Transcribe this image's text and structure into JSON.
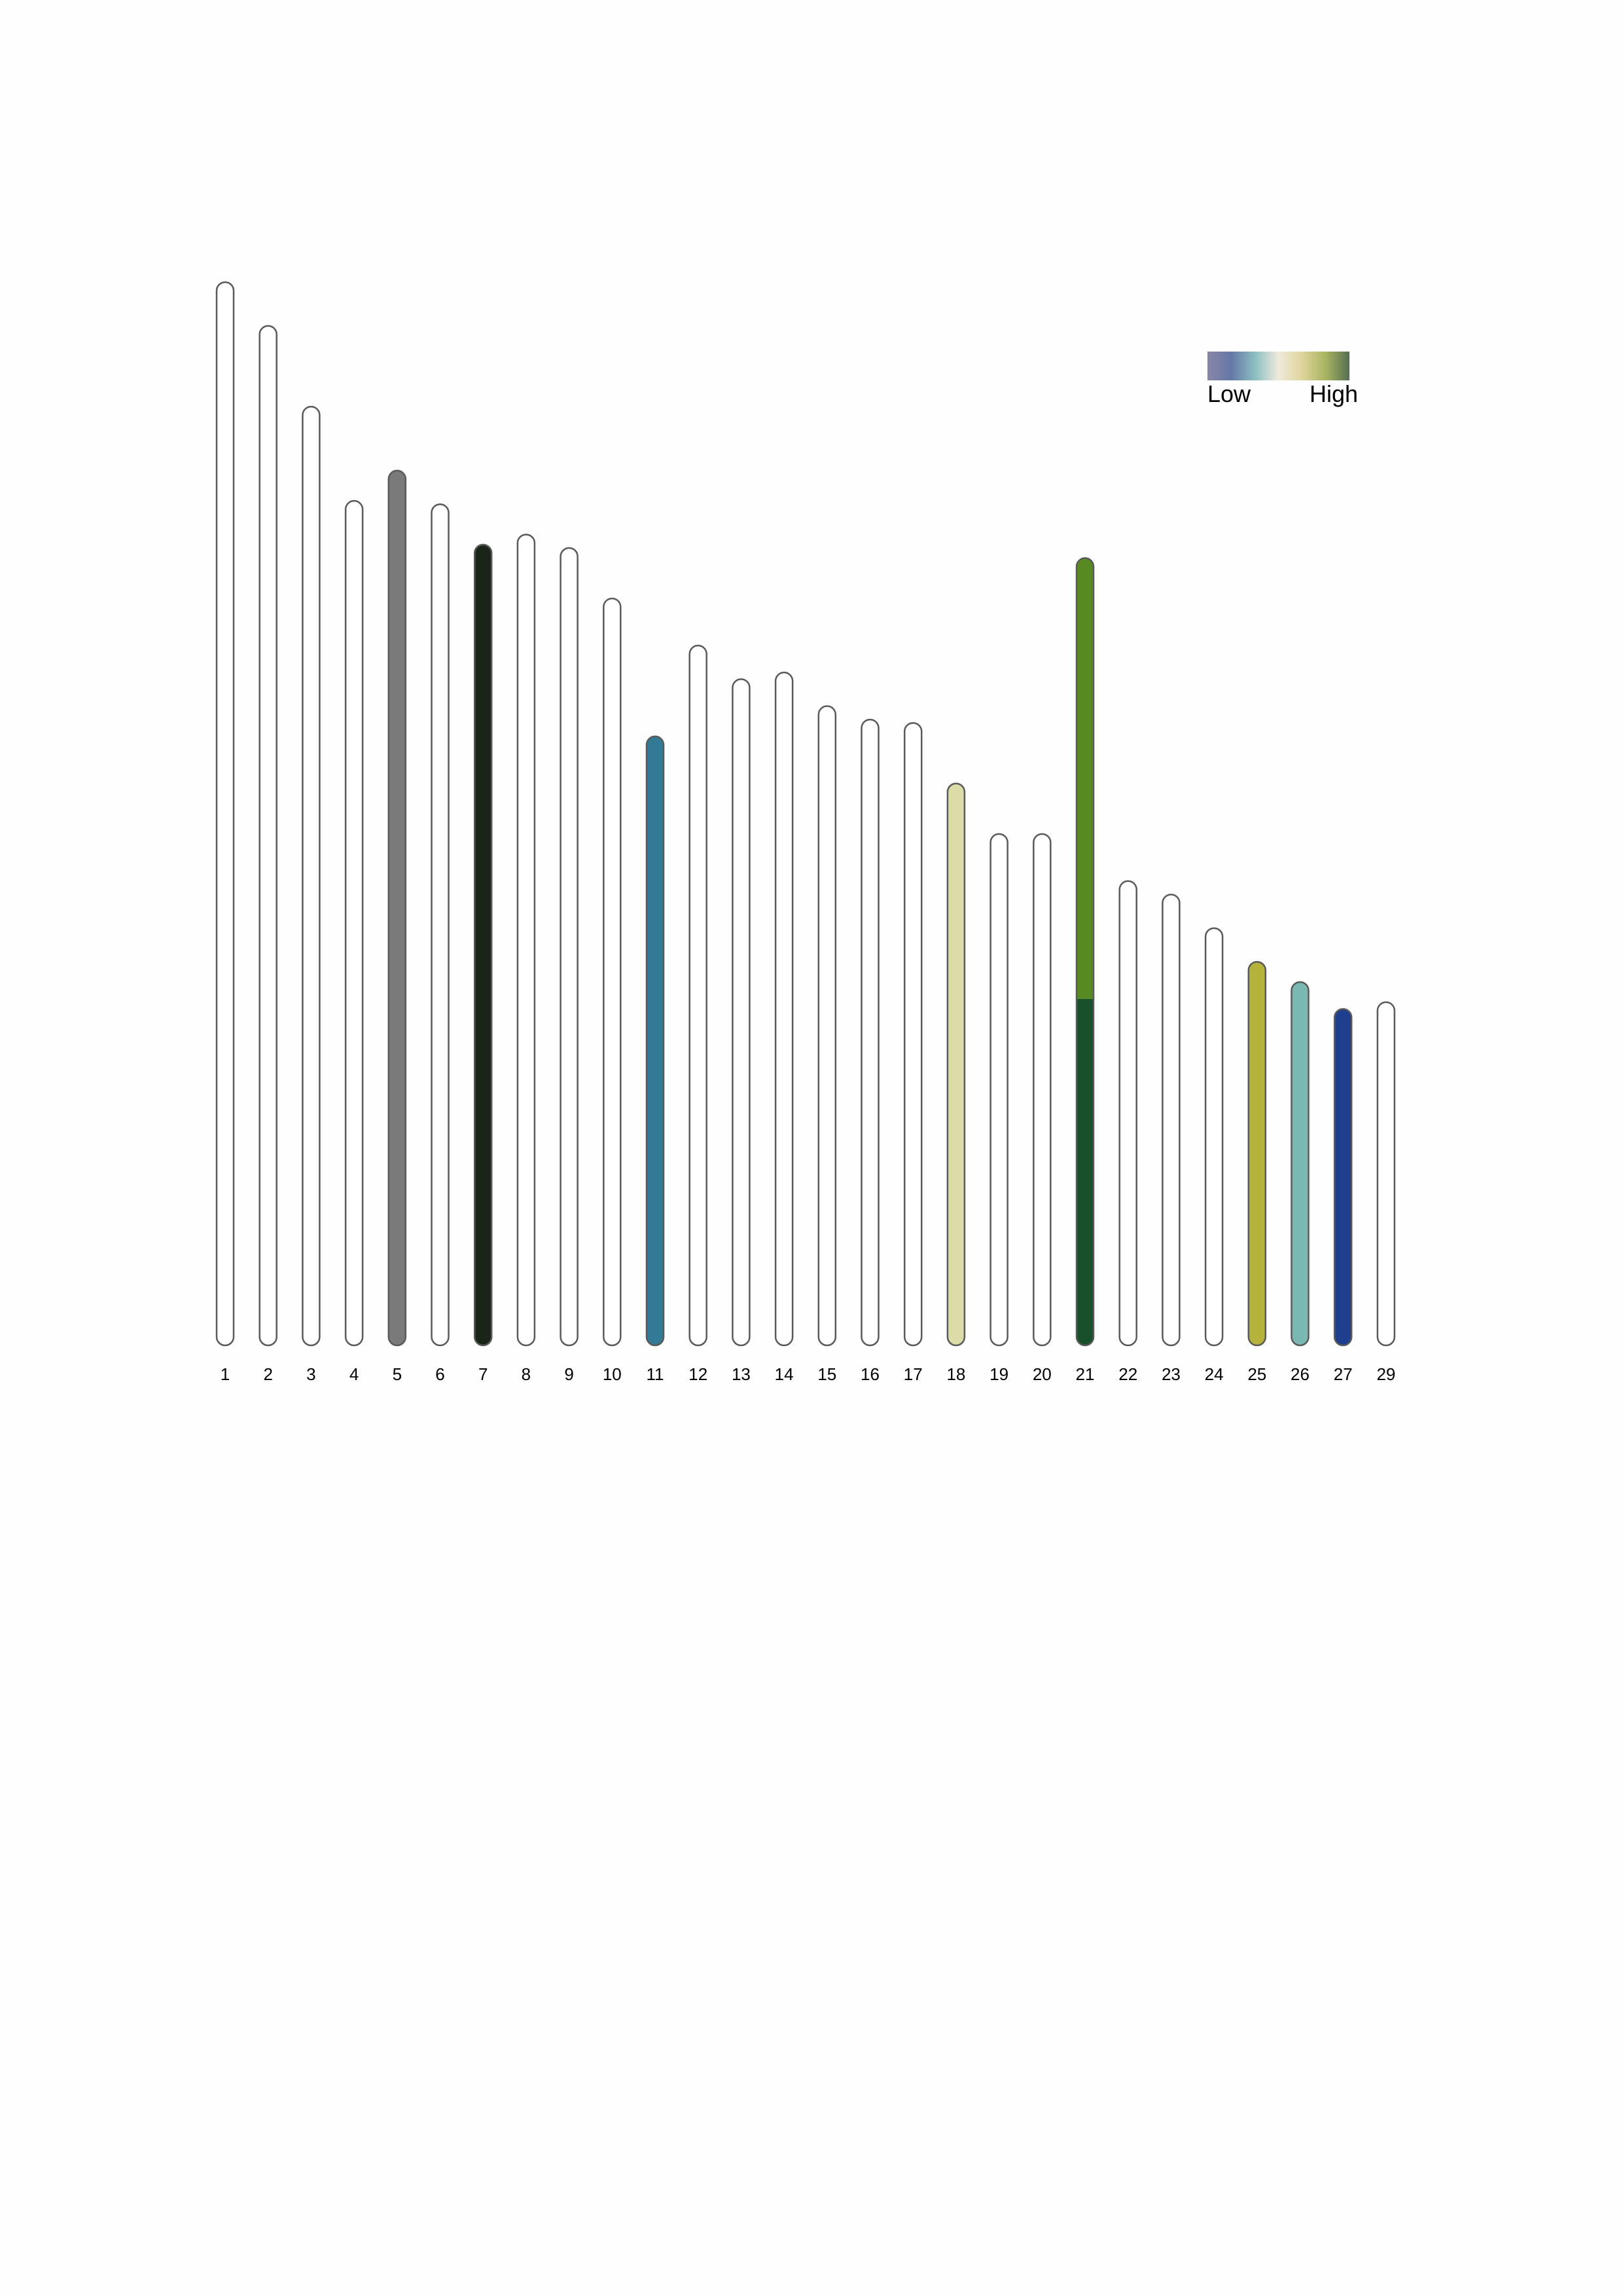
{
  "chart_data": {
    "type": "bar",
    "categories": [
      "1",
      "2",
      "3",
      "4",
      "5",
      "6",
      "7",
      "8",
      "9",
      "10",
      "11",
      "12",
      "13",
      "14",
      "15",
      "16",
      "17",
      "18",
      "19",
      "20",
      "21",
      "22",
      "23",
      "24",
      "25",
      "26",
      "27",
      "29"
    ],
    "values": [
      158,
      151.5,
      139.5,
      125.5,
      130,
      125,
      119,
      120.5,
      118.5,
      111,
      90.5,
      104,
      99,
      100,
      95,
      93,
      92.5,
      83.5,
      76,
      76,
      117,
      69,
      67,
      62,
      57,
      54,
      50,
      51
    ],
    "ylim": [
      0,
      158
    ],
    "grid": false,
    "empty_color": "#ffffff",
    "highlights": [
      {
        "category": "5",
        "segments": [
          {
            "from": 0,
            "to": 130,
            "color": "#7a7a7a"
          }
        ]
      },
      {
        "category": "7",
        "segments": [
          {
            "from": 0,
            "to": 119,
            "color": "#1a2419"
          }
        ]
      },
      {
        "category": "11",
        "segments": [
          {
            "from": 0,
            "to": 90.5,
            "color": "#327a96"
          }
        ]
      },
      {
        "category": "18",
        "segments": [
          {
            "from": 0,
            "to": 83.5,
            "color": "#dcdca8"
          }
        ]
      },
      {
        "category": "21",
        "segments": [
          {
            "from": 0,
            "to": 51.5,
            "color": "#17502a"
          },
          {
            "from": 51.5,
            "to": 117,
            "color": "#578a20"
          }
        ]
      },
      {
        "category": "25",
        "segments": [
          {
            "from": 0,
            "to": 57,
            "color": "#b5b33c"
          }
        ]
      },
      {
        "category": "26",
        "segments": [
          {
            "from": 0,
            "to": 54,
            "color": "#7ab8b4"
          }
        ]
      },
      {
        "category": "27",
        "segments": [
          {
            "from": 0,
            "to": 50,
            "color": "#1d3f8e"
          }
        ]
      }
    ],
    "legend": {
      "position": "top-right",
      "low_label": "Low",
      "high_label": "High",
      "gradient": [
        "#8a86a6",
        "#6577a6",
        "#8bbec2",
        "#f0eadc",
        "#e0d49c",
        "#a8b460",
        "#566e52"
      ]
    }
  }
}
